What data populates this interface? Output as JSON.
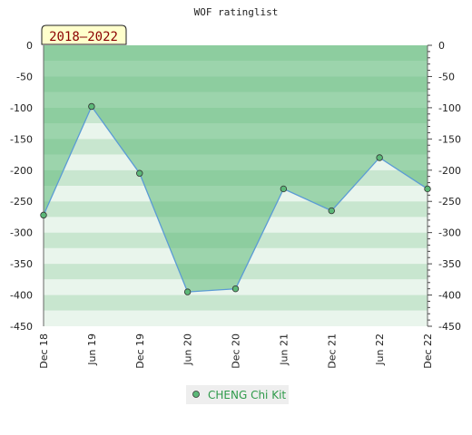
{
  "chart_data": {
    "type": "area",
    "title": "WOF ratinglist",
    "badge": "2018–2022",
    "categories": [
      "Dec 18",
      "Jun 19",
      "Dec 19",
      "Jun 20",
      "Dec 20",
      "Jun 21",
      "Dec 21",
      "Jun 22",
      "Dec 22"
    ],
    "series": [
      {
        "name": "CHENG Chi Kit",
        "values": [
          -272,
          -98,
          -205,
          -395,
          -390,
          -230,
          -265,
          -180,
          -230
        ]
      }
    ],
    "ylim": [
      -450,
      0
    ],
    "yticks": [
      0,
      -50,
      -100,
      -150,
      -200,
      -250,
      -300,
      -350,
      -400,
      -450
    ],
    "colors": {
      "line": "#5b9bd5",
      "fill": "#5cb878",
      "marker": "#5cb878",
      "band_dark": "#c8e6cf",
      "band_light": "#e9f5ec",
      "badge_bg": "#ffffcc"
    }
  }
}
